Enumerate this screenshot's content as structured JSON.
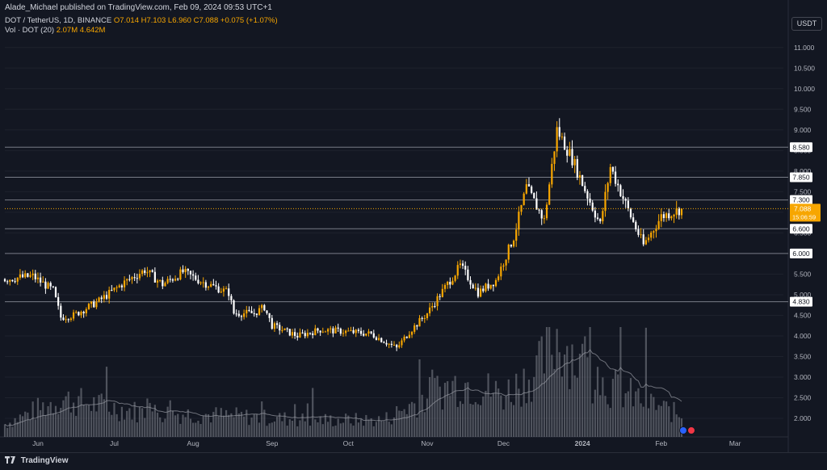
{
  "header": {
    "publish_line": "Alade_Michael published on TradingView.com, Feb 09, 2024 09:53 UTC+1",
    "symbol": "DOT / TetherUS, 1D, BINANCE",
    "open": "O7.014",
    "high": "H7.103",
    "low": "L6.960",
    "close": "C7.088",
    "change": "+0.075 (+1.07%)",
    "vol_label": "Vol · DOT (20)",
    "vol_value": "2.07M",
    "vol_ma": "4.642M"
  },
  "currency_button": "USDT",
  "footer": {
    "logo_text": "TradingView"
  },
  "colors": {
    "background": "#131722",
    "up": "#f7a600",
    "down": "#ffffff",
    "level_line": "#787b86",
    "last_price": "#f7a600"
  },
  "chart_data": {
    "type": "candlestick",
    "x_tick_labels": [
      "Jun",
      "Jul",
      "Aug",
      "Sep",
      "Oct",
      "Nov",
      "Dec",
      "2024",
      "Feb",
      "Mar"
    ],
    "y_tick_labels": [
      "11.000",
      "10.500",
      "10.000",
      "9.500",
      "9.000",
      "8.500",
      "8.000",
      "7.500",
      "7.000",
      "6.500",
      "6.000",
      "5.500",
      "5.000",
      "4.500",
      "4.000",
      "3.500",
      "3.000",
      "2.500",
      "2.000"
    ],
    "ylim": [
      1.55,
      11.25
    ],
    "x_range": [
      "2023-05-19",
      "2024-03-20"
    ],
    "horizontal_levels": [
      {
        "label": "8.580",
        "value": 8.58
      },
      {
        "label": "7.850",
        "value": 7.85
      },
      {
        "label": "7.300",
        "value": 7.3
      },
      {
        "label": "6.600",
        "value": 6.6
      },
      {
        "label": "6.000",
        "value": 6.0
      },
      {
        "label": "4.830",
        "value": 4.83
      }
    ],
    "last_price": {
      "label": "7.088",
      "value": 7.088,
      "countdown": "15:06:59"
    },
    "candle_anchors": [
      {
        "date": "2023-05-19",
        "close": 5.38
      },
      {
        "date": "2023-05-30",
        "close": 5.45
      },
      {
        "date": "2023-06-07",
        "close": 5.1
      },
      {
        "date": "2023-06-10",
        "close": 4.45
      },
      {
        "date": "2023-06-15",
        "close": 4.5
      },
      {
        "date": "2023-06-25",
        "close": 4.85
      },
      {
        "date": "2023-07-05",
        "close": 5.3
      },
      {
        "date": "2023-07-13",
        "close": 5.6
      },
      {
        "date": "2023-07-20",
        "close": 5.25
      },
      {
        "date": "2023-07-28",
        "close": 5.55
      },
      {
        "date": "2023-08-05",
        "close": 5.3
      },
      {
        "date": "2023-08-15",
        "close": 5.05
      },
      {
        "date": "2023-08-17",
        "close": 4.55
      },
      {
        "date": "2023-08-25",
        "close": 4.55
      },
      {
        "date": "2023-08-29",
        "close": 4.7
      },
      {
        "date": "2023-09-01",
        "close": 4.25
      },
      {
        "date": "2023-09-11",
        "close": 4.0
      },
      {
        "date": "2023-09-20",
        "close": 4.15
      },
      {
        "date": "2023-10-01",
        "close": 4.1
      },
      {
        "date": "2023-10-10",
        "close": 4.05
      },
      {
        "date": "2023-10-20",
        "close": 3.7
      },
      {
        "date": "2023-10-25",
        "close": 4.1
      },
      {
        "date": "2023-11-01",
        "close": 4.55
      },
      {
        "date": "2023-11-10",
        "close": 5.35
      },
      {
        "date": "2023-11-14",
        "close": 5.7
      },
      {
        "date": "2023-11-21",
        "close": 5.05
      },
      {
        "date": "2023-11-28",
        "close": 5.35
      },
      {
        "date": "2023-12-05",
        "close": 6.4
      },
      {
        "date": "2023-12-10",
        "close": 7.6
      },
      {
        "date": "2023-12-17",
        "close": 6.8
      },
      {
        "date": "2023-12-22",
        "close": 9.0
      },
      {
        "date": "2023-12-28",
        "close": 8.3
      },
      {
        "date": "2024-01-03",
        "close": 7.4
      },
      {
        "date": "2024-01-08",
        "close": 6.7
      },
      {
        "date": "2024-01-12",
        "close": 8.1
      },
      {
        "date": "2024-01-20",
        "close": 6.9
      },
      {
        "date": "2024-01-25",
        "close": 6.2
      },
      {
        "date": "2024-02-01",
        "close": 6.9
      },
      {
        "date": "2024-02-09",
        "close": 7.088
      }
    ],
    "volume_anchors": [
      {
        "date": "2023-05-19",
        "value": 0.15
      },
      {
        "date": "2023-06-10",
        "value": 0.45
      },
      {
        "date": "2023-07-10",
        "value": 0.3
      },
      {
        "date": "2023-08-15",
        "value": 0.25
      },
      {
        "date": "2023-09-15",
        "value": 0.2
      },
      {
        "date": "2023-10-15",
        "value": 0.2
      },
      {
        "date": "2023-11-05",
        "value": 0.55
      },
      {
        "date": "2023-11-15",
        "value": 0.65
      },
      {
        "date": "2023-12-01",
        "value": 0.5
      },
      {
        "date": "2023-12-15",
        "value": 0.8
      },
      {
        "date": "2023-12-22",
        "value": 1.2
      },
      {
        "date": "2024-01-05",
        "value": 0.7
      },
      {
        "date": "2024-01-15",
        "value": 0.55
      },
      {
        "date": "2024-02-09",
        "value": 0.25
      }
    ]
  }
}
